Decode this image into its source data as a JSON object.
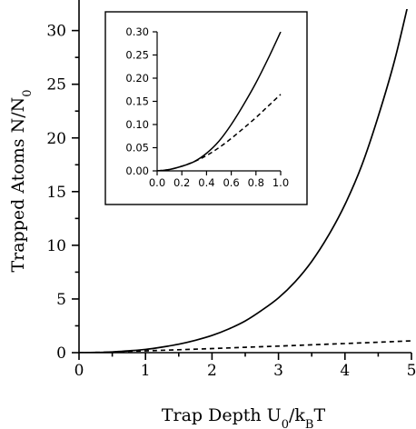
{
  "chart_data": [
    {
      "type": "line",
      "title": "",
      "xlabel": "Trap Depth U_0/k_BT",
      "ylabel": "Trapped Atoms N/N_0",
      "xlim": [
        0,
        5
      ],
      "ylim": [
        0,
        32
      ],
      "x_ticks": [
        "0",
        "1",
        "2",
        "3",
        "4",
        "5"
      ],
      "y_ticks": [
        "0",
        "5",
        "10",
        "15",
        "20",
        "25",
        "30"
      ],
      "grid": false,
      "series": [
        {
          "style": "solid",
          "color": "#000000",
          "x": [
            0,
            0.25,
            0.5,
            0.75,
            1,
            1.25,
            1.5,
            1.75,
            2,
            2.25,
            2.5,
            2.75,
            3,
            3.25,
            3.5,
            3.75,
            4,
            4.25,
            4.5,
            4.75,
            5
          ],
          "values": [
            0,
            0.02,
            0.07,
            0.17,
            0.3,
            0.52,
            0.79,
            1.15,
            1.6,
            2.2,
            2.95,
            3.95,
            5.1,
            6.6,
            8.5,
            10.9,
            13.8,
            17.4,
            22.0,
            27.3,
            33.8
          ]
        },
        {
          "style": "dashed",
          "color": "#000000",
          "x": [
            0,
            0.25,
            0.5,
            0.75,
            1,
            1.5,
            2,
            2.5,
            3,
            3.5,
            4,
            4.5,
            5
          ],
          "values": [
            0,
            0.02,
            0.06,
            0.12,
            0.17,
            0.27,
            0.38,
            0.5,
            0.61,
            0.73,
            0.85,
            0.97,
            1.1
          ]
        }
      ]
    },
    {
      "type": "line",
      "title": "",
      "xlabel": "",
      "ylabel": "",
      "xlim": [
        0,
        1
      ],
      "ylim": [
        0,
        0.3
      ],
      "x_ticks": [
        "0.0",
        "0.2",
        "0.4",
        "0.6",
        "0.8",
        "1.0"
      ],
      "y_ticks": [
        "0.00",
        "0.05",
        "0.10",
        "0.15",
        "0.20",
        "0.25",
        "0.30"
      ],
      "grid": false,
      "series": [
        {
          "style": "solid",
          "color": "#000000",
          "x": [
            0,
            0.1,
            0.2,
            0.3,
            0.4,
            0.5,
            0.6,
            0.7,
            0.8,
            0.9,
            1.0
          ],
          "values": [
            0,
            0.003,
            0.01,
            0.02,
            0.038,
            0.064,
            0.1,
            0.143,
            0.19,
            0.243,
            0.3
          ]
        },
        {
          "style": "dashed",
          "color": "#000000",
          "x": [
            0,
            0.1,
            0.2,
            0.3,
            0.4,
            0.5,
            0.6,
            0.7,
            0.8,
            0.9,
            1.0
          ],
          "values": [
            0,
            0.003,
            0.01,
            0.02,
            0.033,
            0.05,
            0.07,
            0.092,
            0.115,
            0.14,
            0.165
          ]
        }
      ]
    }
  ]
}
